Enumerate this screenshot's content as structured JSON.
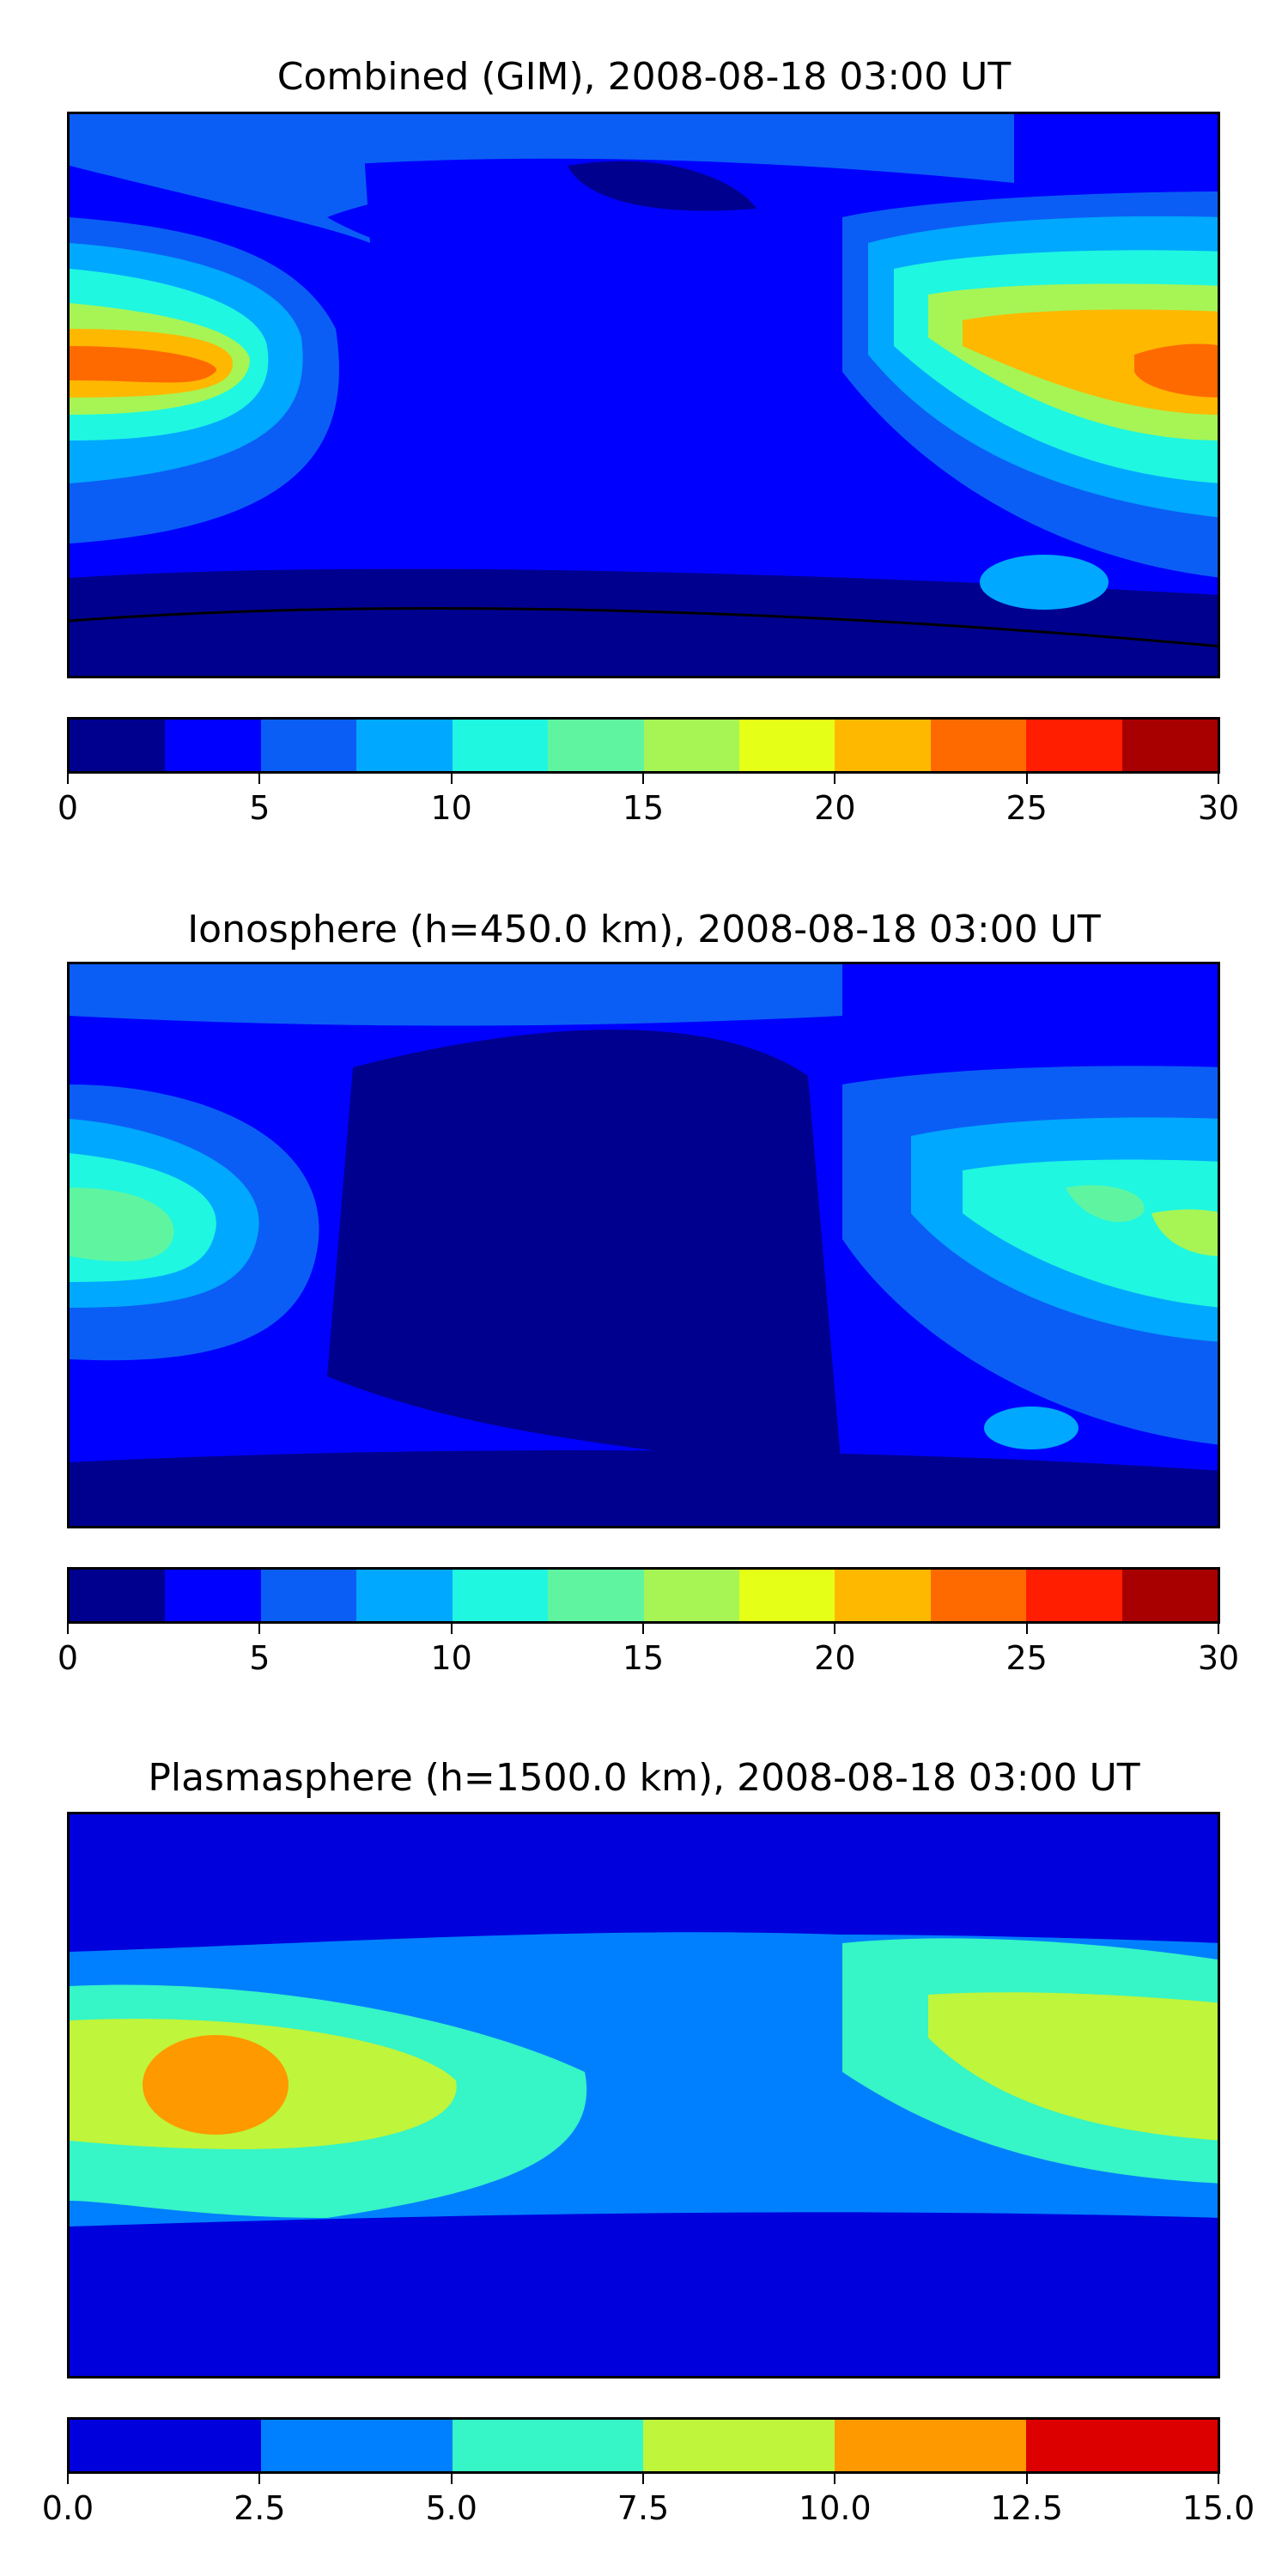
{
  "panels": [
    {
      "title": "Combined (GIM), 2008-08-18 03:00 UT",
      "colorbar": {
        "ticks": [
          "0",
          "5",
          "10",
          "15",
          "20",
          "25",
          "30"
        ],
        "colors": [
          "#00008f",
          "#0000ff",
          "#0b5ef5",
          "#00a8ff",
          "#1ff7e0",
          "#5ff5a0",
          "#a6f555",
          "#e6ff16",
          "#ffb800",
          "#ff6a00",
          "#ff1e00",
          "#a80000"
        ]
      }
    },
    {
      "title": "Ionosphere  (h=450.0 km), 2008-08-18 03:00 UT",
      "colorbar": {
        "ticks": [
          "0",
          "5",
          "10",
          "15",
          "20",
          "25",
          "30"
        ],
        "colors": [
          "#00008f",
          "#0000ff",
          "#0b5ef5",
          "#00a8ff",
          "#1ff7e0",
          "#5ff5a0",
          "#a6f555",
          "#e6ff16",
          "#ffb800",
          "#ff6a00",
          "#ff1e00",
          "#a80000"
        ]
      }
    },
    {
      "title": "Plasmasphere (h=1500.0 km), 2008-08-18 03:00 UT",
      "colorbar": {
        "ticks": [
          "0.0",
          "2.5",
          "5.0",
          "7.5",
          "10.0",
          "12.5",
          "15.0"
        ],
        "colors": [
          "#0000dd",
          "#0080ff",
          "#36f5c6",
          "#bff53a",
          "#ff9900",
          "#dd0000"
        ]
      }
    }
  ]
}
